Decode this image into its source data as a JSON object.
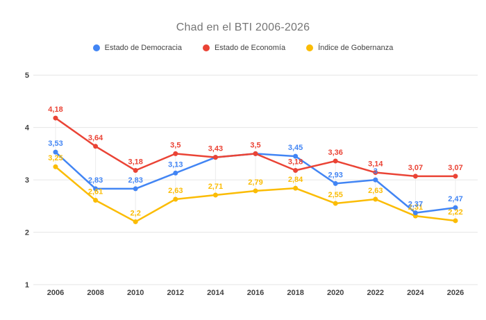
{
  "header": {
    "title": "Chad en el BTI 2006-2026"
  },
  "colors": {
    "background": "#ffffff",
    "title_text": "#757575",
    "axis_text": "#424242",
    "gridline": "#e6e6e6",
    "series_blue": "#4285F4",
    "series_red": "#EA4335",
    "series_yellow": "#FBBC04"
  },
  "chart_data": {
    "type": "line",
    "title": "Chad en el BTI 2006-2026",
    "xlabel": "",
    "ylabel": "",
    "x": [
      2006,
      2008,
      2010,
      2012,
      2014,
      2016,
      2018,
      2020,
      2022,
      2024,
      2026
    ],
    "ylim": [
      1,
      5
    ],
    "yticks": [
      1,
      2,
      3,
      4,
      5
    ],
    "grid": "horizontal",
    "legend_position": "top",
    "decimal_separator": ",",
    "series": [
      {
        "name": "Estado de Democracia",
        "color": "#4285F4",
        "values": [
          3.53,
          2.83,
          2.83,
          3.13,
          3.43,
          3.5,
          3.45,
          2.93,
          3.0,
          2.37,
          2.47
        ],
        "labels": [
          "3,53",
          "2,83",
          "2,83",
          "3,13",
          "",
          "",
          "3,45",
          "2,93",
          "3",
          "2,37",
          "2,47"
        ]
      },
      {
        "name": "Estado de Economía",
        "color": "#EA4335",
        "values": [
          4.18,
          3.64,
          3.18,
          3.5,
          3.43,
          3.5,
          3.18,
          3.36,
          3.14,
          3.07,
          3.07
        ],
        "labels": [
          "4,18",
          "3,64",
          "3,18",
          "3,5",
          "3,43",
          "3,5",
          "3,18",
          "3,36",
          "3,14",
          "3,07",
          "3,07"
        ]
      },
      {
        "name": "Índice de Gobernanza",
        "color": "#FBBC04",
        "values": [
          3.25,
          2.61,
          2.2,
          2.63,
          2.71,
          2.79,
          2.84,
          2.55,
          2.63,
          2.31,
          2.22
        ],
        "labels": [
          "3,25",
          "2,61",
          "2,2",
          "2,63",
          "2,71",
          "2,79",
          "2,84",
          "2,55",
          "2,63",
          "2,31",
          "2,22"
        ]
      }
    ]
  }
}
